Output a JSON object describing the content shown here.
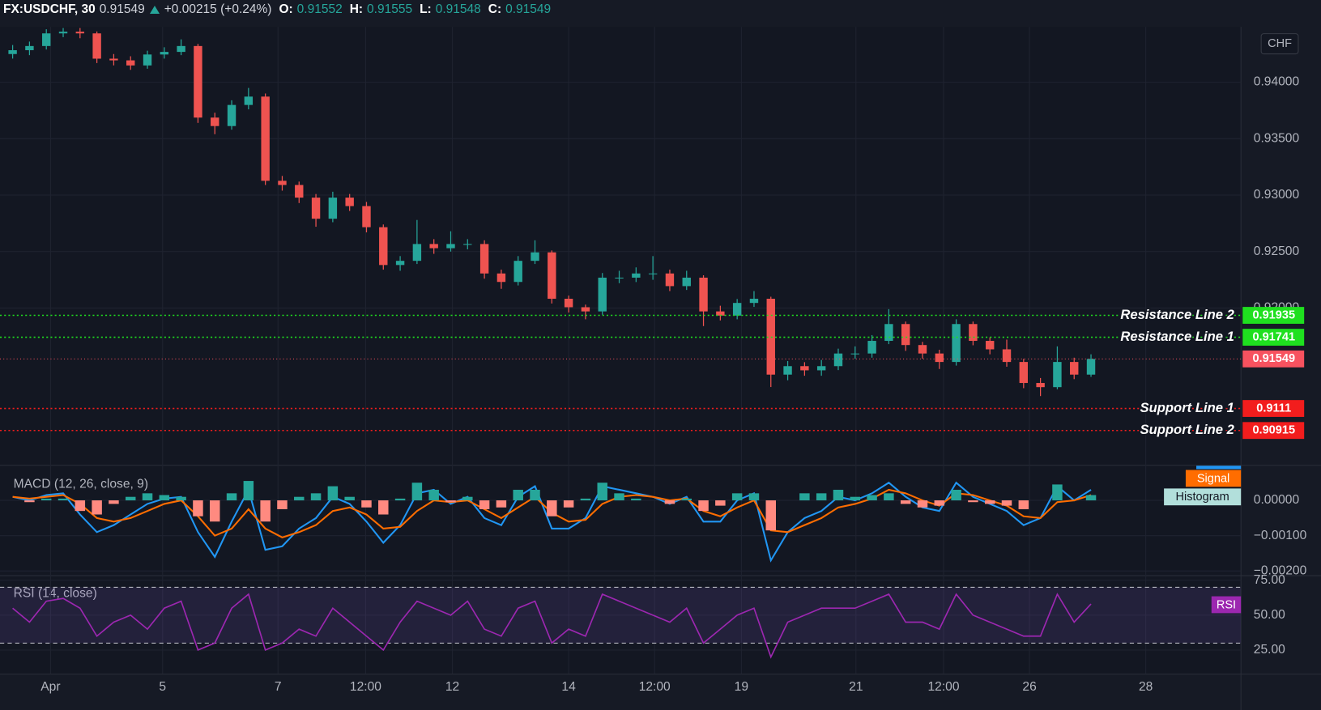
{
  "chart_data": [
    {
      "type": "candlestick",
      "title": "FX:USDCHF, 30",
      "last": 0.91549,
      "change": "+0.00215 (+0.24%)",
      "ohlc": [
        {
          "label": "O:",
          "value": 0.91552
        },
        {
          "label": "H:",
          "value": 0.91555
        },
        {
          "label": "L:",
          "value": 0.91548
        },
        {
          "label": "C:",
          "value": 0.91549
        }
      ],
      "currency": "CHF",
      "up_color": "#26a69a",
      "down_color": "#ef5350",
      "last_color": "#f7525f",
      "grid": true,
      "candles": [
        [
          0.9425,
          0.9433,
          0.9421,
          0.94284
        ],
        [
          0.94284,
          0.9436,
          0.9424,
          0.94321
        ],
        [
          0.94321,
          0.9447,
          0.9429,
          0.94433
        ],
        [
          0.94433,
          0.9448,
          0.944,
          0.94448
        ],
        [
          0.94448,
          0.9448,
          0.9439,
          0.94433
        ],
        [
          0.94433,
          0.9445,
          0.9417,
          0.94209
        ],
        [
          0.94209,
          0.9425,
          0.9415,
          0.94194
        ],
        [
          0.94194,
          0.9423,
          0.9411,
          0.94149
        ],
        [
          0.94149,
          0.9428,
          0.9412,
          0.94246
        ],
        [
          0.94246,
          0.9431,
          0.9421,
          0.94269
        ],
        [
          0.94269,
          0.9438,
          0.9424,
          0.94321
        ],
        [
          0.94321,
          0.9434,
          0.9364,
          0.93687
        ],
        [
          0.93687,
          0.9373,
          0.9354,
          0.93612
        ],
        [
          0.93612,
          0.9384,
          0.9358,
          0.93799
        ],
        [
          0.93799,
          0.9395,
          0.9376,
          0.93873
        ],
        [
          0.93873,
          0.939,
          0.9309,
          0.93127
        ],
        [
          0.93127,
          0.9317,
          0.9304,
          0.9309
        ],
        [
          0.9309,
          0.9312,
          0.9293,
          0.92978
        ],
        [
          0.92978,
          0.9301,
          0.9272,
          0.92791
        ],
        [
          0.92791,
          0.9303,
          0.9276,
          0.92978
        ],
        [
          0.92978,
          0.9301,
          0.9286,
          0.92903
        ],
        [
          0.92903,
          0.9294,
          0.9267,
          0.92716
        ],
        [
          0.92716,
          0.9274,
          0.9234,
          0.92381
        ],
        [
          0.92381,
          0.9246,
          0.9233,
          0.92418
        ],
        [
          0.92418,
          0.9278,
          0.9239,
          0.92567
        ],
        [
          0.92567,
          0.9261,
          0.9248,
          0.9253
        ],
        [
          0.9253,
          0.9268,
          0.925,
          0.92567
        ],
        [
          0.92567,
          0.9261,
          0.9252,
          0.92567
        ],
        [
          0.92567,
          0.926,
          0.9226,
          0.92306
        ],
        [
          0.92306,
          0.9234,
          0.9217,
          0.92231
        ],
        [
          0.92231,
          0.9246,
          0.922,
          0.92418
        ],
        [
          0.92418,
          0.926,
          0.9239,
          0.92493
        ],
        [
          0.92493,
          0.9251,
          0.9204,
          0.92082
        ],
        [
          0.92082,
          0.9211,
          0.9196,
          0.92007
        ],
        [
          0.92007,
          0.9203,
          0.919,
          0.9197
        ],
        [
          0.9197,
          0.9231,
          0.9194,
          0.92269
        ],
        [
          0.92269,
          0.9233,
          0.9222,
          0.92269
        ],
        [
          0.92269,
          0.9236,
          0.9223,
          0.92306
        ],
        [
          0.92306,
          0.9246,
          0.9225,
          0.92306
        ],
        [
          0.92306,
          0.9234,
          0.9215,
          0.92194
        ],
        [
          0.92194,
          0.9233,
          0.9216,
          0.92269
        ],
        [
          0.92269,
          0.9229,
          0.9184,
          0.9197
        ],
        [
          0.9197,
          0.9202,
          0.9189,
          0.91933
        ],
        [
          0.91933,
          0.9208,
          0.919,
          0.92045
        ],
        [
          0.92045,
          0.9215,
          0.9201,
          0.92082
        ],
        [
          0.92082,
          0.921,
          0.913,
          0.9141
        ],
        [
          0.9141,
          0.9153,
          0.9136,
          0.91485
        ],
        [
          0.91485,
          0.9152,
          0.914,
          0.91448
        ],
        [
          0.91448,
          0.9154,
          0.914,
          0.91485
        ],
        [
          0.91485,
          0.9164,
          0.9145,
          0.91597
        ],
        [
          0.91597,
          0.9166,
          0.9155,
          0.91597
        ],
        [
          0.91597,
          0.9176,
          0.9156,
          0.91709
        ],
        [
          0.91709,
          0.9199,
          0.9168,
          0.91858
        ],
        [
          0.91858,
          0.9188,
          0.9162,
          0.91672
        ],
        [
          0.91672,
          0.917,
          0.9155,
          0.91597
        ],
        [
          0.91597,
          0.9163,
          0.9146,
          0.91522
        ],
        [
          0.91522,
          0.919,
          0.9149,
          0.91858
        ],
        [
          0.91858,
          0.9188,
          0.9167,
          0.91709
        ],
        [
          0.91709,
          0.9174,
          0.9159,
          0.91634
        ],
        [
          0.91634,
          0.9172,
          0.9148,
          0.91522
        ],
        [
          0.91522,
          0.9155,
          0.9129,
          0.91336
        ],
        [
          0.91336,
          0.9138,
          0.9122,
          0.91299
        ],
        [
          0.91299,
          0.9166,
          0.9128,
          0.91522
        ],
        [
          0.91522,
          0.9156,
          0.9137,
          0.9141
        ],
        [
          0.9141,
          0.9159,
          0.9139,
          0.91549
        ]
      ],
      "levels": [
        {
          "name": "Resistance Line 2",
          "value": 0.91935,
          "color": "#1fe01f"
        },
        {
          "name": "Resistance Line 1",
          "value": 0.91741,
          "color": "#1fe01f"
        },
        {
          "name": "Support Line 1",
          "value": 0.9111,
          "color": "#f21d1d"
        },
        {
          "name": "Support Line 2",
          "value": 0.90915,
          "color": "#f21d1d"
        }
      ],
      "ylim": [
        0.9061,
        0.9449
      ],
      "yticks": [
        {
          "value": 0.92,
          "label": "0.92000"
        },
        {
          "value": 0.925,
          "label": "0.92500"
        },
        {
          "value": 0.93,
          "label": "0.93000"
        },
        {
          "value": 0.935,
          "label": "0.93500"
        },
        {
          "value": 0.94,
          "label": "0.94000"
        }
      ],
      "xlim": [
        -0.75,
        72.9
      ],
      "xticks": [
        {
          "value": 2.25,
          "label": "Apr"
        },
        {
          "value": 8.9,
          "label": "5"
        },
        {
          "value": 15.75,
          "label": "7"
        },
        {
          "value": 20.95,
          "label": "12:00"
        },
        {
          "value": 26.1,
          "label": "12"
        },
        {
          "value": 33,
          "label": "14"
        },
        {
          "value": 38.1,
          "label": "12:00"
        },
        {
          "value": 43.25,
          "label": "19"
        },
        {
          "value": 50.05,
          "label": "21"
        },
        {
          "value": 55.25,
          "label": "12:00"
        },
        {
          "value": 60.35,
          "label": "26"
        },
        {
          "value": 67.25,
          "label": "28"
        }
      ]
    },
    {
      "type": "macd",
      "title": "MACD (12, 26, close, 9)",
      "series": [
        {
          "color": "#2196f3",
          "values": [
            0.0001,
            0,
            0.00015,
            0.0002,
            -0.0004,
            -0.0009,
            -0.0007,
            -0.0004,
            -0.0001,
            5e-05,
            0.0001,
            -0.0009,
            -0.0016,
            -0.0006,
            0.0003,
            -0.0014,
            -0.0013,
            -0.0008,
            -0.0005,
            0.0001,
            -0.0001,
            -0.0006,
            -0.0012,
            -0.0007,
            0.0002,
            0.0003,
            -0.0001,
            0.0001,
            -0.0005,
            -0.0007,
            0.0001,
            0.0004,
            -0.0008,
            -0.0008,
            -0.0005,
            0.0004,
            0.0003,
            0.0002,
            0.0001,
            -0.0001,
            0.0001,
            -0.0006,
            -0.0006,
            0,
            0.0002,
            -0.0017,
            -0.0009,
            -0.0005,
            -0.0003,
            0.0001,
            0,
            0.0002,
            0.0005,
            0.0001,
            -0.0002,
            -0.0003,
            0.0005,
            0.0001,
            -0.0001,
            -0.0003,
            -0.0007,
            -0.0005,
            0.0004,
            0,
            0.0003
          ]
        },
        {
          "name": "Signal",
          "color": "#ff6d00",
          "text_color": "#ffffff",
          "values": [
            0.0001,
            5e-05,
            0.0001,
            0.00015,
            -0.0001,
            -0.0005,
            -0.0006,
            -0.0005,
            -0.0003,
            -0.0001,
            0,
            -0.00045,
            -0.001,
            -0.0008,
            -0.00025,
            -0.0008,
            -0.00105,
            -0.0009,
            -0.0007,
            -0.0003,
            -0.0002,
            -0.0004,
            -0.0008,
            -0.00075,
            -0.0003,
            0,
            -5e-05,
            0,
            -0.00025,
            -0.0005,
            -0.0002,
            0.0001,
            -0.00035,
            -0.0006,
            -0.00055,
            -0.0001,
            0.0001,
            0.00015,
            0.0001,
            0,
            5e-05,
            -0.0003,
            -0.00045,
            -0.0002,
            0,
            -0.00085,
            -0.0009,
            -0.0007,
            -0.0005,
            -0.0002,
            -0.0001,
            5e-05,
            0.0003,
            0.0002,
            0,
            -0.00015,
            0.0002,
            0.00015,
            0,
            -0.00015,
            -0.00045,
            -0.0005,
            -5e-05,
            0,
            0.00015
          ]
        },
        {
          "name": "Histogram",
          "color": "#b2dfdb",
          "text_color": "#131722",
          "up_color": "#26a69a",
          "down_color": "#ff8a80",
          "values": [
            0,
            -5e-05,
            5e-05,
            5e-05,
            -0.0003,
            -0.0004,
            -0.0001,
            0.0001,
            0.0002,
            0.00015,
            0.0001,
            -0.00045,
            -0.0006,
            0.0002,
            0.00055,
            -0.0006,
            -0.00025,
            0.0001,
            0.0002,
            0.0004,
            0.0001,
            -0.0002,
            -0.0004,
            5e-05,
            0.0005,
            0.0003,
            -5e-05,
            0.0001,
            -0.00025,
            -0.0002,
            0.0003,
            0.0003,
            -0.00045,
            -0.0002,
            5e-05,
            0.0005,
            0.0002,
            5e-05,
            0,
            -0.0001,
            5e-05,
            -0.0003,
            -0.00015,
            0.0002,
            0.0002,
            -0.00085,
            0,
            0.0002,
            0.0002,
            0.0003,
            0.0001,
            0.00015,
            0.0002,
            -0.0001,
            -0.0002,
            -0.00015,
            0.0003,
            -5e-05,
            -0.0001,
            -0.00015,
            -0.00025,
            0,
            0.00045,
            0,
            0.00015
          ]
        }
      ],
      "ylim": [
        -0.00212,
        0.00098
      ],
      "yticks": [
        {
          "value": 0,
          "label": "0.00000"
        },
        {
          "value": -0.001,
          "label": "−0.00100"
        },
        {
          "value": -0.002,
          "label": "−0.00200"
        }
      ]
    },
    {
      "type": "line",
      "title": "RSI (14, close)",
      "series": [
        {
          "name": "RSI",
          "color": "#9c27b0",
          "values": [
            55,
            45,
            60,
            62,
            55,
            35,
            45,
            50,
            40,
            55,
            60,
            25,
            30,
            55,
            65,
            25,
            30,
            40,
            35,
            55,
            45,
            35,
            25,
            45,
            60,
            55,
            50,
            60,
            40,
            35,
            55,
            60,
            30,
            40,
            35,
            65,
            60,
            55,
            50,
            45,
            55,
            30,
            40,
            50,
            55,
            20,
            45,
            50,
            55,
            55,
            55,
            60,
            65,
            45,
            45,
            40,
            65,
            50,
            45,
            40,
            35,
            35,
            65,
            45,
            58
          ]
        }
      ],
      "band": [
        30,
        70
      ],
      "ylim": [
        8,
        78
      ],
      "yticks": [
        {
          "value": 25,
          "label": "25.00"
        },
        {
          "value": 50,
          "label": "50.00"
        },
        {
          "value": 75,
          "label": "75.00"
        }
      ]
    }
  ]
}
